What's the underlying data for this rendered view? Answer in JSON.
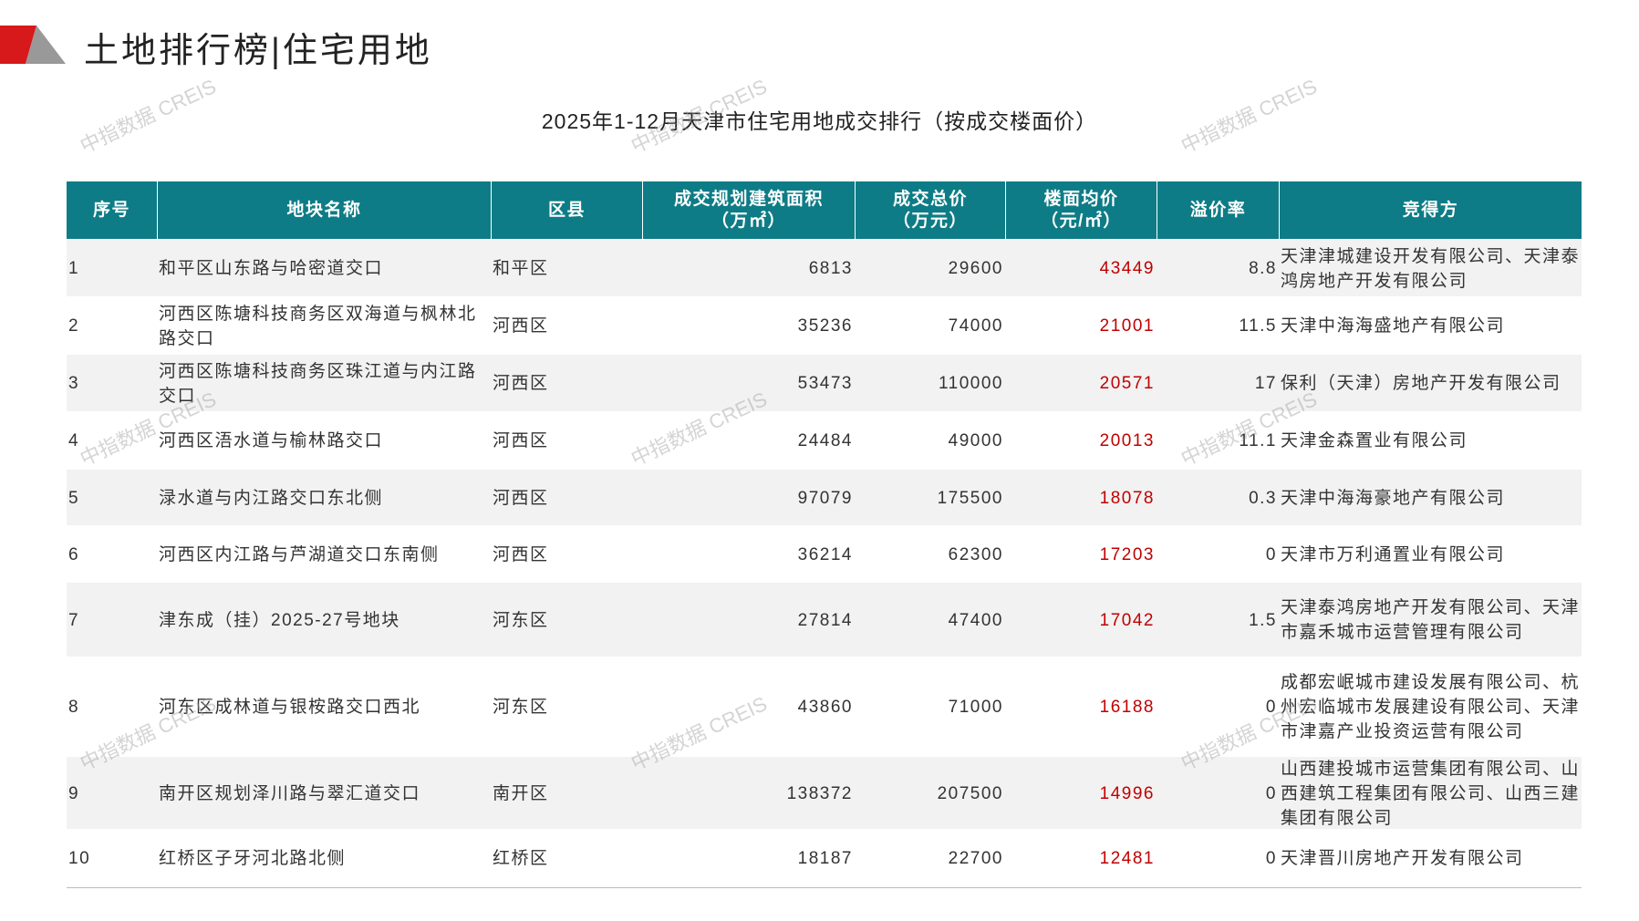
{
  "header": {
    "title": "土地排行榜|住宅用地"
  },
  "watermark": "中指数据 CREIS",
  "table": {
    "title": "2025年1-12月天津市住宅用地成交排行（按成交楼面价）",
    "columns": [
      "序号",
      "地块名称",
      "区县",
      "成交规划建筑面积\n（万㎡）",
      "成交总价\n（万元）",
      "楼面均价\n（元/㎡）",
      "溢价率",
      "竞得方"
    ],
    "rows": [
      [
        1,
        "和平区山东路与哈密道交口",
        "和平区",
        6813,
        29600,
        43449,
        "8.8",
        "天津津城建设开发有限公司、天津泰鸿房地产开发有限公司"
      ],
      [
        2,
        "河西区陈塘科技商务区双海道与枫林北路交口",
        "河西区",
        35236,
        74000,
        21001,
        "11.5",
        "天津中海海盛地产有限公司"
      ],
      [
        3,
        "河西区陈塘科技商务区珠江道与内江路交口",
        "河西区",
        53473,
        110000,
        20571,
        "17",
        "保利（天津）房地产开发有限公司"
      ],
      [
        4,
        "河西区浯水道与榆林路交口",
        "河西区",
        24484,
        49000,
        20013,
        "11.1",
        "天津金森置业有限公司"
      ],
      [
        5,
        "渌水道与内江路交口东北侧",
        "河西区",
        97079,
        175500,
        18078,
        "0.3",
        "天津中海海豪地产有限公司"
      ],
      [
        6,
        "河西区内江路与芦湖道交口东南侧",
        "河西区",
        36214,
        62300,
        17203,
        "0",
        "天津市万利通置业有限公司"
      ],
      [
        7,
        "津东成（挂）2025-27号地块",
        "河东区",
        27814,
        47400,
        17042,
        "1.5",
        "天津泰鸿房地产开发有限公司、天津市嘉禾城市运营管理有限公司"
      ],
      [
        8,
        "河东区成林道与银桉路交口西北",
        "河东区",
        43860,
        71000,
        16188,
        "0",
        "成都宏岷城市建设发展有限公司、杭州宏临城市发展建设有限公司、天津市津嘉产业投资运营有限公司"
      ],
      [
        9,
        "南开区规划泽川路与翠汇道交口",
        "南开区",
        138372,
        207500,
        14996,
        "0",
        "山西建投城市运营集团有限公司、山西建筑工程集团有限公司、山西三建集团有限公司"
      ],
      [
        10,
        "红桥区子牙河北路北侧",
        "红桥区",
        18187,
        22700,
        12481,
        "0",
        "天津晋川房地产开发有限公司"
      ]
    ]
  }
}
